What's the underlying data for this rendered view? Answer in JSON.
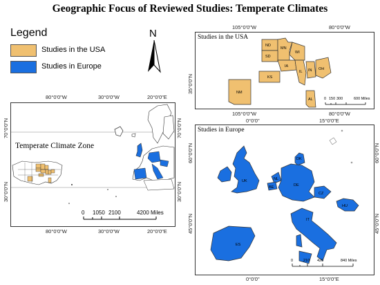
{
  "title": "Geographic Focus of Reviewed Studies: Temperate Climates",
  "legend": {
    "title": "Legend",
    "items": [
      {
        "label": "Studies in the USA",
        "color": "#f0c070"
      },
      {
        "label": "Studies in Europe",
        "color": "#1a6fe0"
      }
    ]
  },
  "north_arrow": {
    "letter": "N",
    "icon": "north-arrow-icon"
  },
  "colors": {
    "usa": "#f0c070",
    "europe": "#1a6fe0",
    "outline": "#333333"
  },
  "world_map": {
    "zone_label": "Temperate Climate Zone",
    "top_ticks": [
      "80°0'0\"W",
      "30°0'0\"W",
      "20°0'0\"E"
    ],
    "bottom_ticks": [
      "80°0'0\"W",
      "30°0'0\"W",
      "20°0'0\"E"
    ],
    "left_ticks": [
      "70°0'0\"N",
      "30°0'0\"N"
    ],
    "right_ticks": [
      "70°0'0\"N",
      "30°0'0\"N"
    ],
    "scale": {
      "labels": [
        "0",
        "1050",
        "2100",
        "4200 Miles"
      ]
    }
  },
  "usa_map": {
    "title": "Studies in the USA",
    "top_ticks": [
      "105°0'0\"W",
      "80°0'0\"W"
    ],
    "bottom_ticks": [
      "105°0'0\"W",
      "80°0'0\"W"
    ],
    "left_ticks": [
      "35°0'0\"N"
    ],
    "states": [
      "ND",
      "MN",
      "SD",
      "WI",
      "IA",
      "IL",
      "IN",
      "OH",
      "KS",
      "NM",
      "AL"
    ],
    "scale": {
      "labels": [
        "0",
        "150",
        "300",
        "600 Miles"
      ]
    }
  },
  "europe_map": {
    "title": "Studies in Europe",
    "top_ticks": [
      "0°0'0\"",
      "15°0'0\"E"
    ],
    "bottom_ticks": [
      "0°0'0\"",
      "15°0'0\"E"
    ],
    "left_ticks": [
      "60°0'0\"N",
      "45°0'0\"N"
    ],
    "right_ticks": [
      "60°0'0\"N",
      "45°0'0\"N"
    ],
    "countries": [
      "DK",
      "UK",
      "NL",
      "BE",
      "DE",
      "CZ",
      "HU",
      "IT",
      "ES"
    ],
    "scale": {
      "labels": [
        "0",
        "210",
        "420",
        "840 Miles"
      ]
    }
  }
}
